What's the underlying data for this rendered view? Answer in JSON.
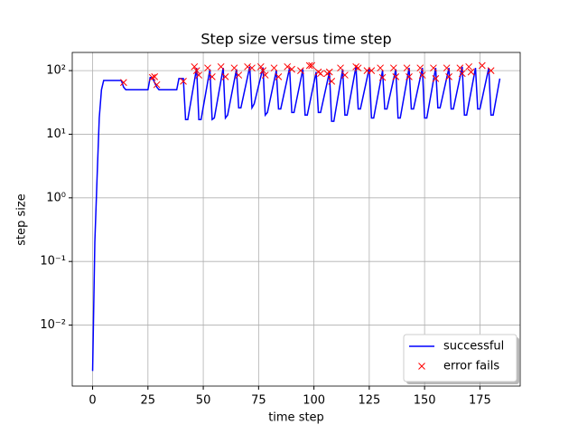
{
  "chart_data": {
    "type": "line",
    "title": "Step size versus time step",
    "x_label": "time step",
    "y_label": "step size",
    "xlim": [
      -9.2,
      193.2
    ],
    "ylim": [
      0.0011,
      193
    ],
    "log_y": true,
    "grid": true,
    "legend": "lower right",
    "xticks": [
      0,
      25,
      50,
      75,
      100,
      125,
      150,
      175
    ],
    "yticks": [
      {
        "value": 0.01,
        "label": "10⁻²"
      },
      {
        "value": 0.1,
        "label": "10⁻¹"
      },
      {
        "value": 1,
        "label": "10⁰"
      },
      {
        "value": 10,
        "label": "10¹"
      },
      {
        "value": 100,
        "label": "10²"
      }
    ],
    "series": [
      {
        "name": "successful",
        "color": "#0000ff",
        "style": "line",
        "x": [
          0,
          1,
          2,
          3,
          4,
          5,
          13,
          14,
          15,
          25,
          26,
          27,
          28,
          29,
          30,
          38,
          39,
          41,
          42,
          43,
          47,
          48,
          49,
          53,
          54,
          55,
          59,
          60,
          61,
          65,
          66,
          67,
          71,
          72,
          73,
          77,
          78,
          79,
          83,
          84,
          85,
          89,
          90,
          91,
          95,
          96,
          97,
          101,
          102,
          103,
          107,
          108,
          109,
          113,
          114,
          115,
          119,
          120,
          121,
          125,
          126,
          127,
          131,
          132,
          133,
          137,
          138,
          139,
          143,
          144,
          145,
          149,
          150,
          151,
          155,
          156,
          157,
          161,
          162,
          163,
          167,
          168,
          169,
          173,
          174,
          175,
          179,
          180,
          181,
          184
        ],
        "values": [
          0.0019,
          0.2,
          2,
          18,
          50,
          70,
          70,
          55,
          50,
          50,
          78,
          78,
          65,
          55,
          50,
          50,
          75,
          75,
          17,
          17,
          110,
          17,
          17,
          105,
          17,
          18,
          110,
          18,
          20,
          105,
          26,
          26,
          115,
          26,
          30,
          112,
          20,
          22,
          100,
          25,
          25,
          110,
          22,
          22,
          105,
          20,
          20,
          95,
          22,
          22,
          95,
          16,
          16,
          105,
          20,
          20,
          115,
          25,
          25,
          110,
          18,
          18,
          100,
          25,
          25,
          105,
          18,
          18,
          110,
          25,
          25,
          110,
          18,
          18,
          110,
          26,
          26,
          110,
          25,
          25,
          115,
          20,
          20,
          110,
          25,
          25,
          110,
          20,
          20,
          75
        ]
      },
      {
        "name": "error fails",
        "color": "#ff0000",
        "style": "marker",
        "x": [
          14,
          27,
          28,
          29,
          41,
          46,
          47,
          48,
          52,
          54,
          58,
          60,
          64,
          66,
          70,
          72,
          76,
          77,
          78,
          82,
          84,
          88,
          90,
          94,
          98,
          99,
          102,
          103,
          106,
          107,
          108,
          112,
          114,
          119,
          120,
          124,
          126,
          130,
          131,
          136,
          137,
          142,
          143,
          148,
          149,
          154,
          155,
          160,
          161,
          166,
          167,
          170,
          171,
          176,
          180
        ],
        "values": [
          65,
          78,
          80,
          60,
          68,
          115,
          100,
          85,
          110,
          80,
          115,
          80,
          110,
          85,
          115,
          110,
          115,
          100,
          85,
          110,
          80,
          115,
          105,
          100,
          120,
          120,
          95,
          90,
          90,
          95,
          68,
          110,
          85,
          115,
          110,
          100,
          100,
          110,
          78,
          110,
          80,
          110,
          80,
          110,
          85,
          110,
          75,
          110,
          80,
          110,
          90,
          115,
          95,
          120,
          100
        ]
      }
    ]
  }
}
